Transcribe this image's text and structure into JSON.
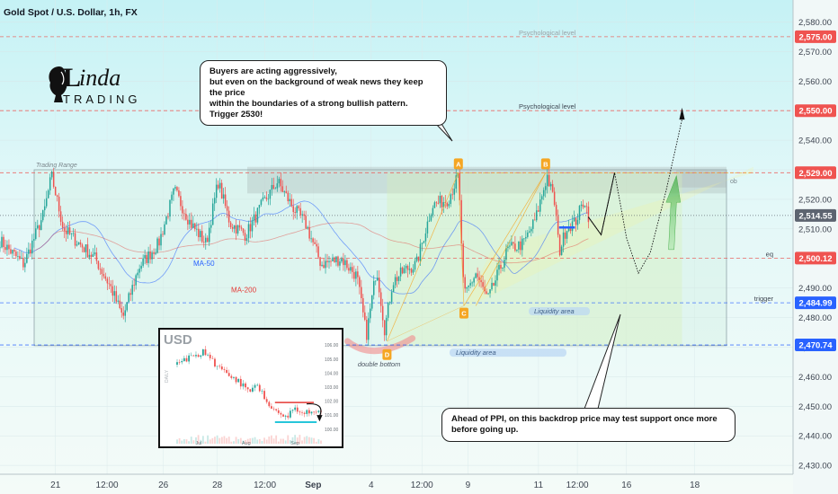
{
  "header": {
    "title": "Gold Spot / U.S. Dollar, 1h, FX"
  },
  "logo": {
    "text_a": "L",
    "text_b": "inda",
    "text_c": "TRADING"
  },
  "colors": {
    "up": "#26a69a",
    "down": "#ef5350",
    "ma50": "#2962ff",
    "ma200": "#e53935",
    "red_badge": "#ef5350",
    "blue_badge": "#2962ff",
    "gray_badge": "#5d6470",
    "orange": "#f5a623"
  },
  "chart_data": {
    "type": "candlestick",
    "ylim": [
      2427,
      2585
    ],
    "y_ticks": [
      2580,
      2570,
      2560,
      2550,
      2540,
      2530,
      2520,
      2510,
      2500,
      2490,
      2480,
      2470,
      2460,
      2450,
      2440,
      2430
    ],
    "y_tick_labels": [
      "2,580.00",
      "2,570.00",
      "2,560.00",
      "2,550.00",
      "2,540.00",
      "2,530.00",
      "2,520.00",
      "2,510.00",
      "2,500.00",
      "2,490.00",
      "2,480.00",
      "2,470.00",
      "2,460.00",
      "2,450.00",
      "2,440.00",
      "2,430.00"
    ],
    "x_ticks": [
      {
        "label": "21",
        "t": 0.07,
        "bold": false
      },
      {
        "label": "12:00",
        "t": 0.135,
        "bold": false
      },
      {
        "label": "26",
        "t": 0.206,
        "bold": false
      },
      {
        "label": "28",
        "t": 0.274,
        "bold": false
      },
      {
        "label": "12:00",
        "t": 0.334,
        "bold": false
      },
      {
        "label": "Sep",
        "t": 0.395,
        "bold": true
      },
      {
        "label": "4",
        "t": 0.468,
        "bold": false
      },
      {
        "label": "12:00",
        "t": 0.532,
        "bold": false
      },
      {
        "label": "9",
        "t": 0.59,
        "bold": false
      },
      {
        "label": "11",
        "t": 0.679,
        "bold": false
      },
      {
        "label": "12:00",
        "t": 0.728,
        "bold": false
      },
      {
        "label": "16",
        "t": 0.79,
        "bold": false
      },
      {
        "label": "18",
        "t": 0.876,
        "bold": false
      }
    ],
    "key_prices": [
      {
        "label": "2,575.00",
        "value": 2575.0,
        "color": "#ef5350",
        "note": "Psychological level",
        "note_pos": "left-far"
      },
      {
        "label": "2,550.00",
        "value": 2550.0,
        "color": "#ef5350",
        "note": "Psychological level",
        "note_pos": "left"
      },
      {
        "label": "2,529.00",
        "value": 2529.0,
        "color": "#ef5350",
        "note": "",
        "note_pos": ""
      },
      {
        "label": "2,514.55",
        "value": 2514.55,
        "color": "#5d6470",
        "note": "",
        "note_pos": ""
      },
      {
        "label": "2,500.12",
        "value": 2500.12,
        "color": "#ef5350",
        "note": "eq",
        "note_pos": "right"
      },
      {
        "label": "2,484.99",
        "value": 2484.99,
        "color": "#2962ff",
        "note": "trigger",
        "note_pos": "right"
      },
      {
        "label": "2,470.74",
        "value": 2470.74,
        "color": "#2962ff",
        "note": "",
        "note_pos": ""
      }
    ],
    "series": [
      {
        "name": "MA-50",
        "color": "#2962ff"
      },
      {
        "name": "MA-200",
        "color": "#e53935"
      }
    ],
    "trading_range": {
      "label": "Trading Range",
      "top": 2530,
      "bottom": 2470.5
    },
    "anchors": [
      {
        "x": 0.0,
        "v": 2506
      },
      {
        "x": 0.03,
        "v": 2498
      },
      {
        "x": 0.055,
        "v": 2515
      },
      {
        "x": 0.065,
        "v": 2528
      },
      {
        "x": 0.08,
        "v": 2510
      },
      {
        "x": 0.1,
        "v": 2505
      },
      {
        "x": 0.12,
        "v": 2500
      },
      {
        "x": 0.14,
        "v": 2490
      },
      {
        "x": 0.155,
        "v": 2480
      },
      {
        "x": 0.175,
        "v": 2497
      },
      {
        "x": 0.2,
        "v": 2505
      },
      {
        "x": 0.22,
        "v": 2523
      },
      {
        "x": 0.24,
        "v": 2512
      },
      {
        "x": 0.26,
        "v": 2505
      },
      {
        "x": 0.275,
        "v": 2526
      },
      {
        "x": 0.29,
        "v": 2512
      },
      {
        "x": 0.31,
        "v": 2508
      },
      {
        "x": 0.33,
        "v": 2518
      },
      {
        "x": 0.35,
        "v": 2526
      },
      {
        "x": 0.37,
        "v": 2517
      },
      {
        "x": 0.385,
        "v": 2512
      },
      {
        "x": 0.405,
        "v": 2498
      },
      {
        "x": 0.43,
        "v": 2500
      },
      {
        "x": 0.45,
        "v": 2494
      },
      {
        "x": 0.462,
        "v": 2474
      },
      {
        "x": 0.475,
        "v": 2497
      },
      {
        "x": 0.485,
        "v": 2476
      },
      {
        "x": 0.495,
        "v": 2492
      },
      {
        "x": 0.51,
        "v": 2496
      },
      {
        "x": 0.525,
        "v": 2498
      },
      {
        "x": 0.545,
        "v": 2518
      },
      {
        "x": 0.565,
        "v": 2520
      },
      {
        "x": 0.578,
        "v": 2528
      },
      {
        "x": 0.585,
        "v": 2487
      },
      {
        "x": 0.6,
        "v": 2495
      },
      {
        "x": 0.615,
        "v": 2486
      },
      {
        "x": 0.64,
        "v": 2503
      },
      {
        "x": 0.66,
        "v": 2505
      },
      {
        "x": 0.675,
        "v": 2513
      },
      {
        "x": 0.69,
        "v": 2528
      },
      {
        "x": 0.7,
        "v": 2518
      },
      {
        "x": 0.705,
        "v": 2502
      },
      {
        "x": 0.715,
        "v": 2511
      },
      {
        "x": 0.725,
        "v": 2512
      },
      {
        "x": 0.737,
        "v": 2520
      },
      {
        "x": 0.742,
        "v": 2514.5
      }
    ],
    "points": [
      {
        "label": "A",
        "x": 0.578,
        "v": 2532
      },
      {
        "label": "B",
        "x": 0.688,
        "v": 2532
      },
      {
        "label": "C",
        "x": 0.585,
        "v": 2481.5
      },
      {
        "label": "D",
        "x": 0.488,
        "v": 2467.5
      }
    ],
    "annotations": {
      "ob": "ob",
      "liquidity_area": "Liquidity area",
      "liquidity_area_2": "Liquidity area",
      "double_bottom": "double bottom",
      "ma50": "MA-50",
      "ma200": "MA-200"
    }
  },
  "callouts": {
    "top": {
      "line1": "Buyers are acting aggressively,",
      "line2": "but even on the background of weak news they keep the price",
      "line3": "within the boundaries of a strong bullish pattern. Trigger 2530!"
    },
    "bottom": {
      "text": "Ahead of PPI, on this backdrop price may test support once more before going up."
    }
  },
  "inset": {
    "title": "USD",
    "side_label": "DAILY",
    "y_ticks": [
      "106.00",
      "105.00",
      "104.00",
      "103.00",
      "102.00",
      "101.00",
      "100.00"
    ],
    "x_ticks": [
      "Jul",
      "Aug",
      "Sep"
    ],
    "chart_data": {
      "type": "candlestick",
      "ylim": [
        99.6,
        106.4
      ],
      "anchors": [
        {
          "x": 0.0,
          "v": 104.6
        },
        {
          "x": 0.1,
          "v": 105.2
        },
        {
          "x": 0.18,
          "v": 105.5
        },
        {
          "x": 0.25,
          "v": 104.8
        },
        {
          "x": 0.33,
          "v": 104.0
        },
        {
          "x": 0.42,
          "v": 103.5
        },
        {
          "x": 0.5,
          "v": 102.6
        },
        {
          "x": 0.56,
          "v": 103.2
        },
        {
          "x": 0.62,
          "v": 102.0
        },
        {
          "x": 0.7,
          "v": 101.2
        },
        {
          "x": 0.76,
          "v": 100.8
        },
        {
          "x": 0.82,
          "v": 101.6
        },
        {
          "x": 0.88,
          "v": 101.0
        },
        {
          "x": 0.94,
          "v": 101.5
        },
        {
          "x": 1.0,
          "v": 101.2
        }
      ]
    }
  }
}
